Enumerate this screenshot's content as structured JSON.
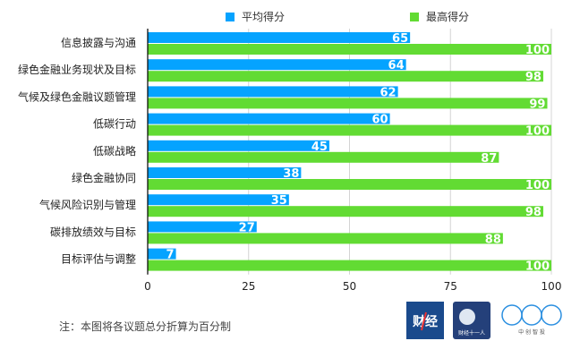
{
  "chart_data": {
    "type": "bar",
    "orientation": "horizontal",
    "categories": [
      "信息披露与沟通",
      "绿色金融业务现状及目标",
      "气候及绿色金融议题管理",
      "低碳行动",
      "低碳战略",
      "绿色金融协同",
      "气候风险识别与管理",
      "碳排放绩效与目标",
      "目标评估与调整"
    ],
    "series": [
      {
        "name": "平均得分",
        "color": "#05A3FF",
        "values": [
          65,
          64,
          62,
          60,
          45,
          38,
          35,
          27,
          7
        ]
      },
      {
        "name": "最高得分",
        "color": "#62DB33",
        "values": [
          100,
          98,
          99,
          100,
          87,
          100,
          98,
          88,
          100
        ]
      }
    ],
    "xlim": [
      0,
      100
    ],
    "xticks": [
      "0",
      "25",
      "50",
      "75",
      "100"
    ],
    "grid": true,
    "legend": "top",
    "data_labels": true
  },
  "note": "注：本图将各议题总分折算为百分制",
  "logos": {
    "logo1": "财经",
    "logo2": "财经十一人",
    "logo3": "中创智投"
  }
}
